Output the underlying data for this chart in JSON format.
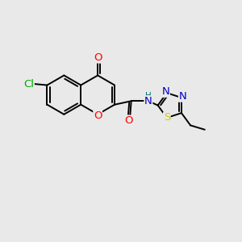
{
  "bg_color": "#e9e9e9",
  "bond_color": "#000000",
  "bond_width": 1.4,
  "atom_colors": {
    "O": "#ff0000",
    "N": "#0000cc",
    "S": "#cccc00",
    "Cl": "#00aa00",
    "H": "#007070",
    "C": "#000000"
  },
  "font_size": 8.5
}
